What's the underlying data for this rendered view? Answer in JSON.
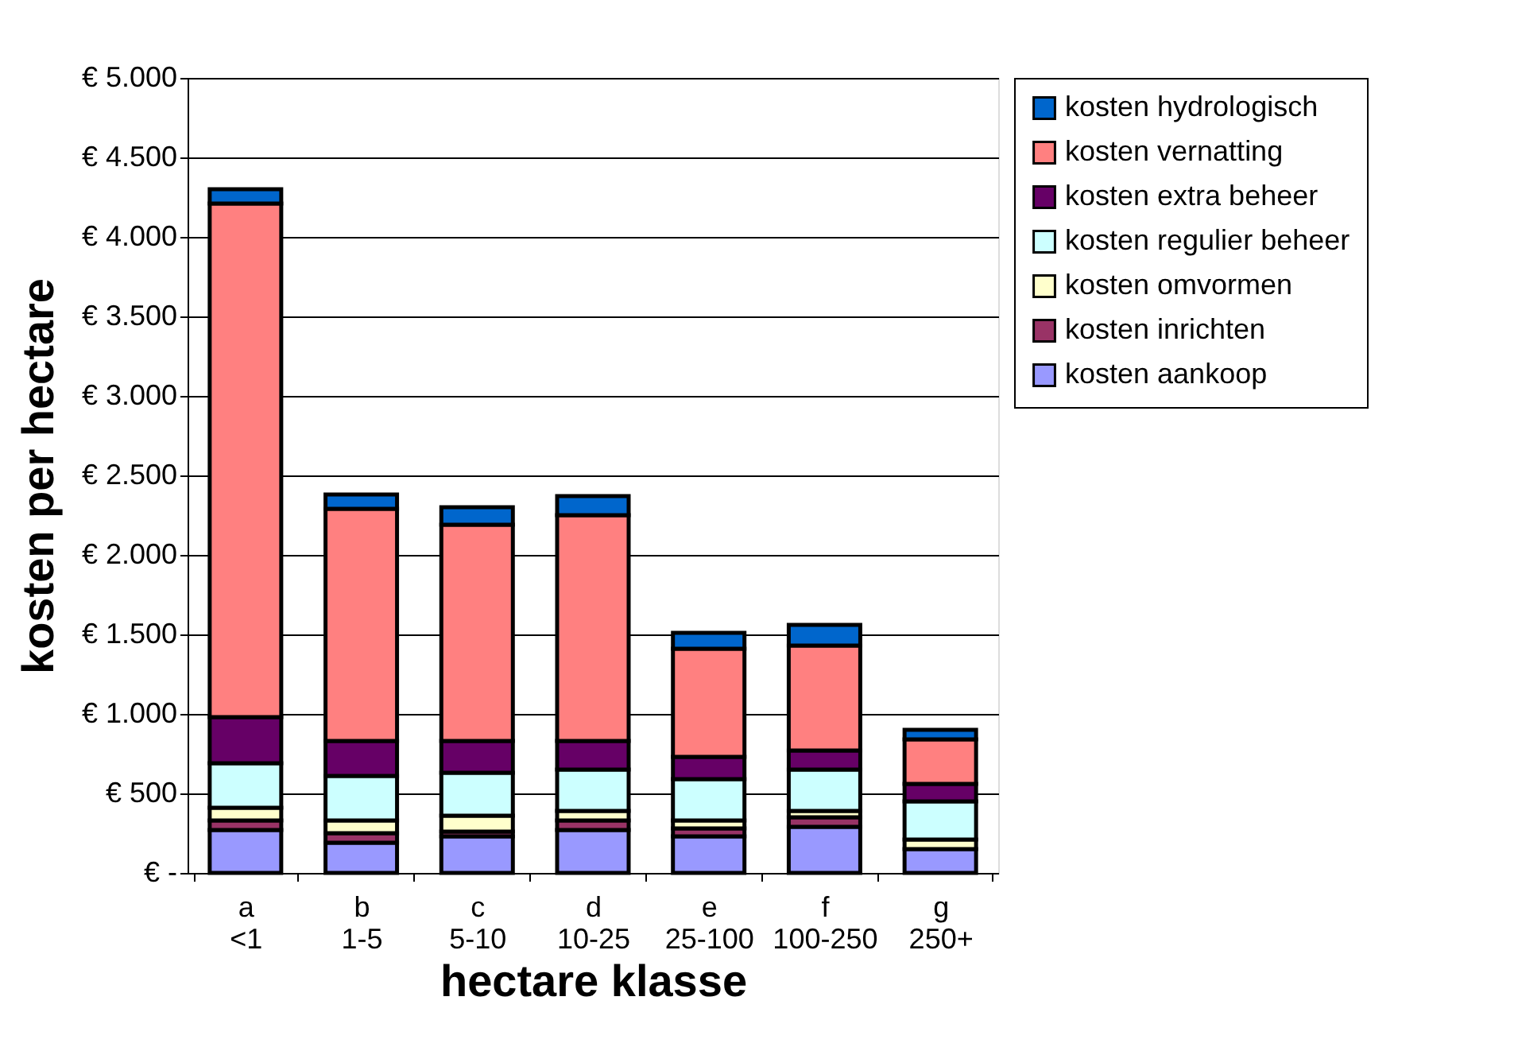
{
  "chart_data": {
    "type": "bar",
    "stacked": true,
    "xlabel": "hectare klasse",
    "ylabel": "kosten per hectare",
    "categories": [
      "a <1",
      "b 1-5",
      "c 5-10",
      "d 10-25",
      "e 25-100",
      "f 100-250",
      "g 250+"
    ],
    "series": [
      {
        "name": "kosten aankoop",
        "color": "#9999ff",
        "values": [
          270,
          190,
          230,
          270,
          230,
          290,
          150
        ]
      },
      {
        "name": "kosten inrichten",
        "color": "#993366",
        "values": [
          60,
          60,
          30,
          60,
          50,
          60,
          null
        ]
      },
      {
        "name": "kosten omvormen",
        "color": "#ffffcc",
        "values": [
          80,
          80,
          100,
          60,
          50,
          40,
          60
        ]
      },
      {
        "name": "kosten regulier beheer",
        "color": "#ccffff",
        "values": [
          280,
          280,
          270,
          260,
          260,
          260,
          240
        ]
      },
      {
        "name": "kosten extra beheer",
        "color": "#660066",
        "values": [
          290,
          220,
          200,
          180,
          140,
          120,
          110
        ]
      },
      {
        "name": "kosten vernatting",
        "color": "#ff8080",
        "values": [
          3230,
          1460,
          1360,
          1420,
          680,
          660,
          280
        ]
      },
      {
        "name": "kosten hydrologisch",
        "color": "#0066cc",
        "values": [
          90,
          90,
          110,
          120,
          100,
          130,
          60
        ]
      }
    ],
    "ylim": [
      0,
      5000
    ],
    "yticks": [
      {
        "value": 0,
        "label": "€ -"
      },
      {
        "value": 500,
        "label": "€ 500"
      },
      {
        "value": 1000,
        "label": "€ 1.000"
      },
      {
        "value": 1500,
        "label": "€ 1.500"
      },
      {
        "value": 2000,
        "label": "€ 2.000"
      },
      {
        "value": 2500,
        "label": "€ 2.500"
      },
      {
        "value": 3000,
        "label": "€ 3.000"
      },
      {
        "value": 3500,
        "label": "€ 3.500"
      },
      {
        "value": 4000,
        "label": "€ 4.000"
      },
      {
        "value": 4500,
        "label": "€ 4.500"
      },
      {
        "value": 5000,
        "label": "€ 5.000"
      }
    ],
    "grid": "y",
    "legend": "right"
  }
}
